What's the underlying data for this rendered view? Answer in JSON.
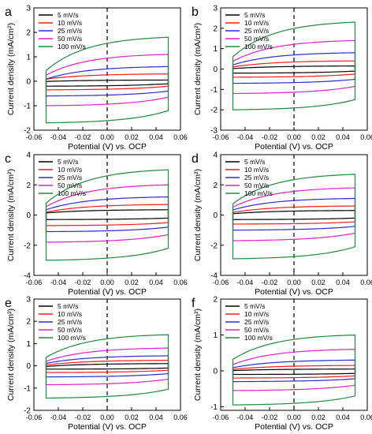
{
  "chart_data": [
    {
      "panel": "a",
      "type": "line",
      "xlabel": "Potential (V) vs. OCP",
      "ylabel": "Current density (mA/cm²)",
      "xlim": [
        -0.06,
        0.06
      ],
      "ylim": [
        -2,
        3
      ],
      "xticks": [
        "-0.06",
        "-0.04",
        "-0.02",
        "0.00",
        "0.02",
        "0.04",
        "0.06"
      ],
      "yticks": [
        "-2",
        "-1",
        "0",
        "1",
        "2",
        "3"
      ],
      "x_range": [
        -0.05,
        0.05
      ],
      "reference_line_x": 0.0,
      "legend": "top-left",
      "series": [
        {
          "name": "5 mV/s",
          "color": "#000000",
          "upper_start": -0.02,
          "upper_end": 0.05,
          "lower_start": -0.2,
          "lower_end": -0.1
        },
        {
          "name": "10 mV/s",
          "color": "#ff1a1a",
          "upper_start": 0.05,
          "upper_end": 0.3,
          "lower_start": -0.35,
          "lower_end": -0.2
        },
        {
          "name": "25 mV/s",
          "color": "#2b2bd4",
          "upper_start": 0.0,
          "upper_end": 0.6,
          "lower_start": -0.6,
          "lower_end": -0.4
        },
        {
          "name": "50 mV/s",
          "color": "#e020c8",
          "upper_start": 0.1,
          "upper_end": 1.1,
          "lower_start": -1.0,
          "lower_end": -0.65
        },
        {
          "name": "100 mV/s",
          "color": "#1f8a3c",
          "upper_start": 0.2,
          "upper_end": 1.8,
          "lower_start": -1.7,
          "lower_end": -1.2
        }
      ]
    },
    {
      "panel": "b",
      "type": "line",
      "xlabel": "Potential (V) vs. OCP",
      "ylabel": "Current density (mA/cm²)",
      "xlim": [
        -0.06,
        0.06
      ],
      "ylim": [
        -3,
        3
      ],
      "xticks": [
        "-0.06",
        "-0.04",
        "-0.02",
        "0.00",
        "0.02",
        "0.04",
        "0.06"
      ],
      "yticks": [
        "-3",
        "-2",
        "-1",
        "0",
        "1",
        "2",
        "3"
      ],
      "x_range": [
        -0.05,
        0.05
      ],
      "reference_line_x": 0.0,
      "legend": "top-left",
      "series": [
        {
          "name": "5 mV/s",
          "color": "#000000",
          "upper_start": 0.0,
          "upper_end": 0.15,
          "lower_start": -0.2,
          "lower_end": -0.1
        },
        {
          "name": "10 mV/s",
          "color": "#ff1a1a",
          "upper_start": 0.05,
          "upper_end": 0.4,
          "lower_start": -0.4,
          "lower_end": -0.25
        },
        {
          "name": "25 mV/s",
          "color": "#2b2bd4",
          "upper_start": 0.1,
          "upper_end": 0.8,
          "lower_start": -0.7,
          "lower_end": -0.5
        },
        {
          "name": "50 mV/s",
          "color": "#e020c8",
          "upper_start": 0.2,
          "upper_end": 1.4,
          "lower_start": -1.2,
          "lower_end": -0.85
        },
        {
          "name": "100 mV/s",
          "color": "#1f8a3c",
          "upper_start": 0.3,
          "upper_end": 2.3,
          "lower_start": -2.0,
          "lower_end": -1.5
        }
      ]
    },
    {
      "panel": "c",
      "type": "line",
      "xlabel": "Potential (V) vs. OCP",
      "ylabel": "Current density (mA/cm²)",
      "xlim": [
        -0.06,
        0.06
      ],
      "ylim": [
        -4,
        4
      ],
      "xticks": [
        "-0.06",
        "-0.04",
        "-0.02",
        "0.00",
        "0.02",
        "0.04",
        "0.06"
      ],
      "yticks": [
        "-4",
        "-2",
        "0",
        "2",
        "4"
      ],
      "x_range": [
        -0.05,
        0.05
      ],
      "reference_line_x": 0.0,
      "legend": "top-left",
      "series": [
        {
          "name": "5 mV/s",
          "color": "#000000",
          "upper_start": 0.1,
          "upper_end": 0.35,
          "lower_start": -0.3,
          "lower_end": -0.2
        },
        {
          "name": "10 mV/s",
          "color": "#ff1a1a",
          "upper_start": 0.1,
          "upper_end": 0.7,
          "lower_start": -0.7,
          "lower_end": -0.5
        },
        {
          "name": "25 mV/s",
          "color": "#2b2bd4",
          "upper_start": 0.2,
          "upper_end": 1.2,
          "lower_start": -1.1,
          "lower_end": -0.8
        },
        {
          "name": "50 mV/s",
          "color": "#e020c8",
          "upper_start": 0.3,
          "upper_end": 2.0,
          "lower_start": -1.8,
          "lower_end": -1.3
        },
        {
          "name": "100 mV/s",
          "color": "#1f8a3c",
          "upper_start": 0.4,
          "upper_end": 3.0,
          "lower_start": -3.0,
          "lower_end": -2.2
        }
      ]
    },
    {
      "panel": "d",
      "type": "line",
      "xlabel": "Potential (V) vs. OCP",
      "ylabel": "Current density (mA/cm²)",
      "xlim": [
        -0.06,
        0.06
      ],
      "ylim": [
        -4,
        4
      ],
      "xticks": [
        "-0.06",
        "-0.04",
        "-0.02",
        "0.00",
        "0.02",
        "0.04",
        "0.06"
      ],
      "yticks": [
        "-4",
        "-2",
        "0",
        "2",
        "4"
      ],
      "x_range": [
        -0.05,
        0.05
      ],
      "reference_line_x": 0.0,
      "legend": "top-left",
      "series": [
        {
          "name": "5 mV/s",
          "color": "#000000",
          "upper_start": 0.05,
          "upper_end": 0.3,
          "lower_start": -0.3,
          "lower_end": -0.2
        },
        {
          "name": "10 mV/s",
          "color": "#ff1a1a",
          "upper_start": 0.1,
          "upper_end": 0.6,
          "lower_start": -0.6,
          "lower_end": -0.45
        },
        {
          "name": "25 mV/s",
          "color": "#2b2bd4",
          "upper_start": 0.2,
          "upper_end": 1.1,
          "lower_start": -1.0,
          "lower_end": -0.75
        },
        {
          "name": "50 mV/s",
          "color": "#e020c8",
          "upper_start": 0.3,
          "upper_end": 1.8,
          "lower_start": -1.7,
          "lower_end": -1.2
        },
        {
          "name": "100 mV/s",
          "color": "#1f8a3c",
          "upper_start": 0.4,
          "upper_end": 2.7,
          "lower_start": -2.9,
          "lower_end": -2.1
        }
      ]
    },
    {
      "panel": "e",
      "type": "line",
      "xlabel": "Potential (V) vs. OCP",
      "ylabel": "Current density (mA/cm²)",
      "xlim": [
        -0.06,
        0.06
      ],
      "ylim": [
        -2,
        3
      ],
      "xticks": [
        "-0.06",
        "-0.04",
        "-0.02",
        "0.00",
        "0.02",
        "0.04",
        "0.06"
      ],
      "yticks": [
        "-2",
        "-1",
        "0",
        "1",
        "2",
        "3"
      ],
      "x_range": [
        -0.05,
        0.05
      ],
      "reference_line_x": 0.0,
      "legend": "top-left",
      "series": [
        {
          "name": "5 mV/s",
          "color": "#000000",
          "upper_start": -0.05,
          "upper_end": 0.1,
          "lower_start": -0.15,
          "lower_end": -0.1
        },
        {
          "name": "10 mV/s",
          "color": "#ff1a1a",
          "upper_start": 0.0,
          "upper_end": 0.25,
          "lower_start": -0.3,
          "lower_end": -0.2
        },
        {
          "name": "25 mV/s",
          "color": "#2b2bd4",
          "upper_start": 0.05,
          "upper_end": 0.45,
          "lower_start": -0.5,
          "lower_end": -0.35
        },
        {
          "name": "50 mV/s",
          "color": "#e020c8",
          "upper_start": 0.1,
          "upper_end": 0.8,
          "lower_start": -0.85,
          "lower_end": -0.6
        },
        {
          "name": "100 mV/s",
          "color": "#1f8a3c",
          "upper_start": 0.2,
          "upper_end": 1.4,
          "lower_start": -1.45,
          "lower_end": -1.05
        }
      ]
    },
    {
      "panel": "f",
      "type": "line",
      "xlabel": "Potential (V) vs. OCP",
      "ylabel": "Current density (mA/cm²)",
      "xlim": [
        -0.06,
        0.06
      ],
      "ylim": [
        -1.1,
        2
      ],
      "xticks": [
        "-0.06",
        "-0.04",
        "-0.02",
        "0.00",
        "0.02",
        "0.04",
        "0.06"
      ],
      "yticks": [
        "-1",
        "0",
        "1",
        "2"
      ],
      "x_range": [
        -0.05,
        0.05
      ],
      "reference_line_x": 0.0,
      "legend": "top-left",
      "series": [
        {
          "name": "5 mV/s",
          "color": "#000000",
          "upper_start": 0.0,
          "upper_end": 0.05,
          "lower_start": -0.1,
          "lower_end": -0.07
        },
        {
          "name": "10 mV/s",
          "color": "#ff1a1a",
          "upper_start": 0.02,
          "upper_end": 0.15,
          "lower_start": -0.2,
          "lower_end": -0.14
        },
        {
          "name": "25 mV/s",
          "color": "#2b2bd4",
          "upper_start": 0.05,
          "upper_end": 0.3,
          "lower_start": -0.3,
          "lower_end": -0.22
        },
        {
          "name": "50 mV/s",
          "color": "#e020c8",
          "upper_start": 0.1,
          "upper_end": 0.6,
          "lower_start": -0.55,
          "lower_end": -0.4
        },
        {
          "name": "100 mV/s",
          "color": "#1f8a3c",
          "upper_start": 0.2,
          "upper_end": 1.0,
          "lower_start": -0.95,
          "lower_end": -0.7
        }
      ]
    }
  ]
}
